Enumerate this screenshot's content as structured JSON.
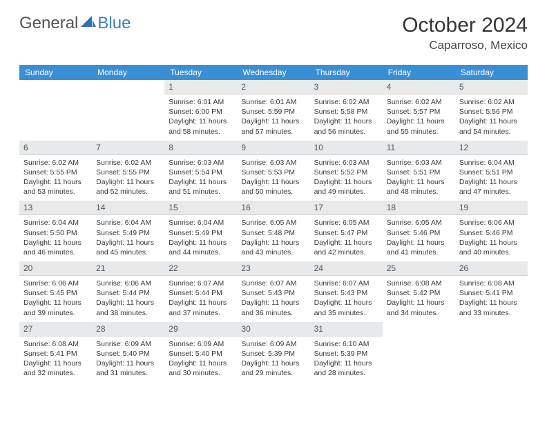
{
  "brand": {
    "part1": "General",
    "part2": "Blue",
    "color1": "#5a5a5a",
    "color2": "#3a7fc4"
  },
  "title": "October 2024",
  "location": "Caparroso, Mexico",
  "header_bg": "#3a8fd4",
  "header_fg": "#ffffff",
  "daynum_bg": "#e7e9ea",
  "day_names": [
    "Sunday",
    "Monday",
    "Tuesday",
    "Wednesday",
    "Thursday",
    "Friday",
    "Saturday"
  ],
  "weeks": [
    [
      null,
      null,
      {
        "n": "1",
        "sr": "6:01 AM",
        "ss": "6:00 PM",
        "dl": "11 hours and 58 minutes."
      },
      {
        "n": "2",
        "sr": "6:01 AM",
        "ss": "5:59 PM",
        "dl": "11 hours and 57 minutes."
      },
      {
        "n": "3",
        "sr": "6:02 AM",
        "ss": "5:58 PM",
        "dl": "11 hours and 56 minutes."
      },
      {
        "n": "4",
        "sr": "6:02 AM",
        "ss": "5:57 PM",
        "dl": "11 hours and 55 minutes."
      },
      {
        "n": "5",
        "sr": "6:02 AM",
        "ss": "5:56 PM",
        "dl": "11 hours and 54 minutes."
      }
    ],
    [
      {
        "n": "6",
        "sr": "6:02 AM",
        "ss": "5:55 PM",
        "dl": "11 hours and 53 minutes."
      },
      {
        "n": "7",
        "sr": "6:02 AM",
        "ss": "5:55 PM",
        "dl": "11 hours and 52 minutes."
      },
      {
        "n": "8",
        "sr": "6:03 AM",
        "ss": "5:54 PM",
        "dl": "11 hours and 51 minutes."
      },
      {
        "n": "9",
        "sr": "6:03 AM",
        "ss": "5:53 PM",
        "dl": "11 hours and 50 minutes."
      },
      {
        "n": "10",
        "sr": "6:03 AM",
        "ss": "5:52 PM",
        "dl": "11 hours and 49 minutes."
      },
      {
        "n": "11",
        "sr": "6:03 AM",
        "ss": "5:51 PM",
        "dl": "11 hours and 48 minutes."
      },
      {
        "n": "12",
        "sr": "6:04 AM",
        "ss": "5:51 PM",
        "dl": "11 hours and 47 minutes."
      }
    ],
    [
      {
        "n": "13",
        "sr": "6:04 AM",
        "ss": "5:50 PM",
        "dl": "11 hours and 46 minutes."
      },
      {
        "n": "14",
        "sr": "6:04 AM",
        "ss": "5:49 PM",
        "dl": "11 hours and 45 minutes."
      },
      {
        "n": "15",
        "sr": "6:04 AM",
        "ss": "5:49 PM",
        "dl": "11 hours and 44 minutes."
      },
      {
        "n": "16",
        "sr": "6:05 AM",
        "ss": "5:48 PM",
        "dl": "11 hours and 43 minutes."
      },
      {
        "n": "17",
        "sr": "6:05 AM",
        "ss": "5:47 PM",
        "dl": "11 hours and 42 minutes."
      },
      {
        "n": "18",
        "sr": "6:05 AM",
        "ss": "5:46 PM",
        "dl": "11 hours and 41 minutes."
      },
      {
        "n": "19",
        "sr": "6:06 AM",
        "ss": "5:46 PM",
        "dl": "11 hours and 40 minutes."
      }
    ],
    [
      {
        "n": "20",
        "sr": "6:06 AM",
        "ss": "5:45 PM",
        "dl": "11 hours and 39 minutes."
      },
      {
        "n": "21",
        "sr": "6:06 AM",
        "ss": "5:44 PM",
        "dl": "11 hours and 38 minutes."
      },
      {
        "n": "22",
        "sr": "6:07 AM",
        "ss": "5:44 PM",
        "dl": "11 hours and 37 minutes."
      },
      {
        "n": "23",
        "sr": "6:07 AM",
        "ss": "5:43 PM",
        "dl": "11 hours and 36 minutes."
      },
      {
        "n": "24",
        "sr": "6:07 AM",
        "ss": "5:43 PM",
        "dl": "11 hours and 35 minutes."
      },
      {
        "n": "25",
        "sr": "6:08 AM",
        "ss": "5:42 PM",
        "dl": "11 hours and 34 minutes."
      },
      {
        "n": "26",
        "sr": "6:08 AM",
        "ss": "5:41 PM",
        "dl": "11 hours and 33 minutes."
      }
    ],
    [
      {
        "n": "27",
        "sr": "6:08 AM",
        "ss": "5:41 PM",
        "dl": "11 hours and 32 minutes."
      },
      {
        "n": "28",
        "sr": "6:09 AM",
        "ss": "5:40 PM",
        "dl": "11 hours and 31 minutes."
      },
      {
        "n": "29",
        "sr": "6:09 AM",
        "ss": "5:40 PM",
        "dl": "11 hours and 30 minutes."
      },
      {
        "n": "30",
        "sr": "6:09 AM",
        "ss": "5:39 PM",
        "dl": "11 hours and 29 minutes."
      },
      {
        "n": "31",
        "sr": "6:10 AM",
        "ss": "5:39 PM",
        "dl": "11 hours and 28 minutes."
      },
      null,
      null
    ]
  ],
  "labels": {
    "sunrise": "Sunrise:",
    "sunset": "Sunset:",
    "daylight": "Daylight:"
  }
}
